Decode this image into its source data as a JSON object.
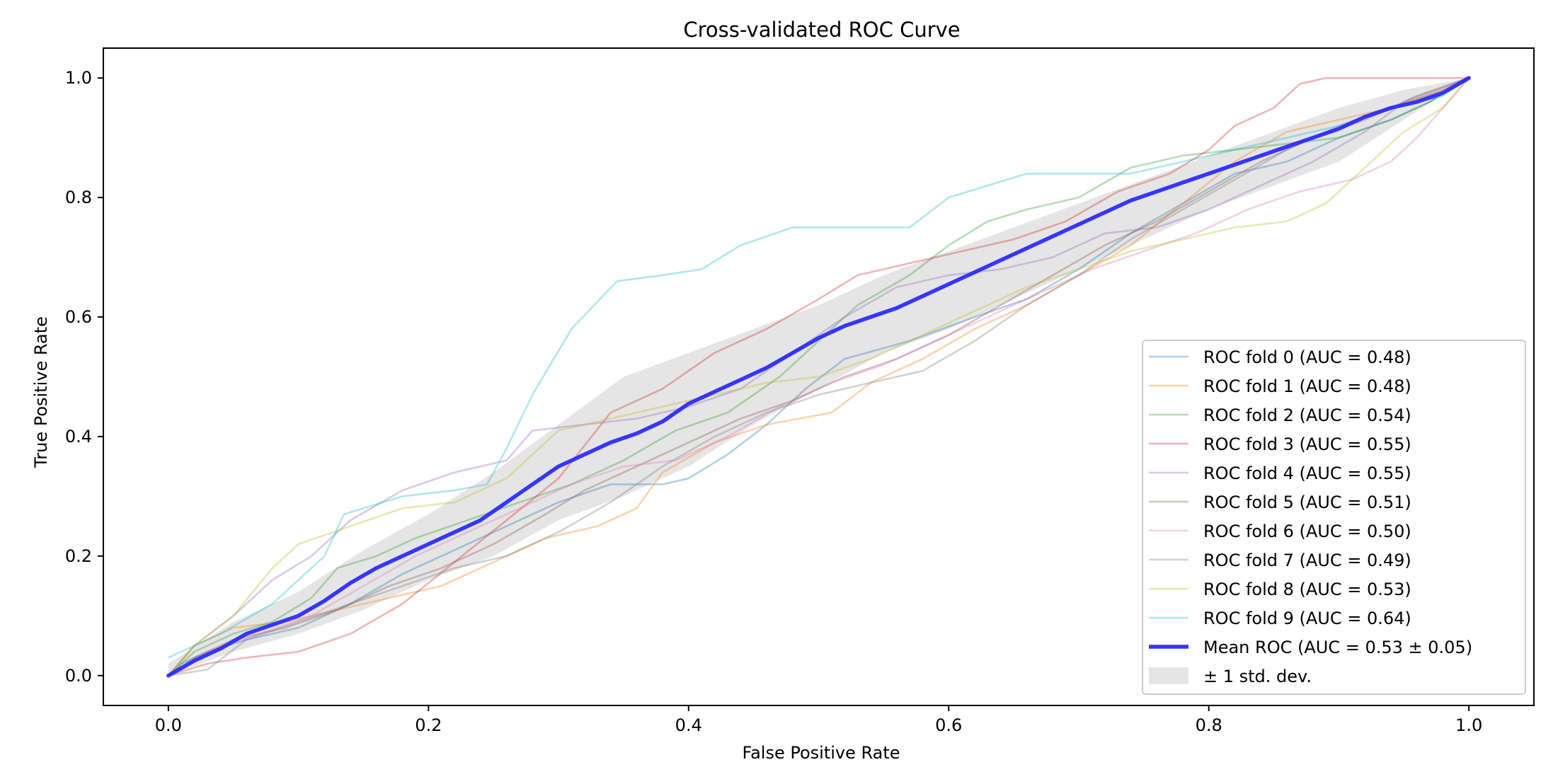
{
  "chart_data": {
    "type": "line",
    "title": "Cross-validated ROC Curve",
    "xlabel": "False Positive Rate",
    "ylabel": "True Positive Rate",
    "xlim": [
      -0.05,
      1.05
    ],
    "ylim": [
      -0.05,
      1.05
    ],
    "xticks": [
      "0.0",
      "0.2",
      "0.4",
      "0.6",
      "0.8",
      "1.0"
    ],
    "yticks": [
      "0.0",
      "0.2",
      "0.4",
      "0.6",
      "0.8",
      "1.0"
    ],
    "legend_position": "lower-right",
    "series": [
      {
        "name": "ROC fold 0 (AUC = 0.48)",
        "color": "#1f77b4",
        "x": [
          0,
          0.01,
          0.03,
          0.06,
          0.1,
          0.14,
          0.18,
          0.22,
          0.26,
          0.3,
          0.34,
          0.38,
          0.4,
          0.43,
          0.46,
          0.49,
          0.52,
          0.57,
          0.62,
          0.66,
          0.7,
          0.74,
          0.78,
          0.82,
          0.86,
          0.9,
          0.94,
          0.97,
          1.0
        ],
        "y": [
          0,
          0.02,
          0.04,
          0.06,
          0.08,
          0.12,
          0.17,
          0.21,
          0.25,
          0.29,
          0.32,
          0.32,
          0.33,
          0.37,
          0.42,
          0.48,
          0.53,
          0.56,
          0.6,
          0.63,
          0.68,
          0.74,
          0.79,
          0.84,
          0.86,
          0.9,
          0.93,
          0.96,
          1.0
        ]
      },
      {
        "name": "ROC fold 1 (AUC = 0.48)",
        "color": "#ff7f0e",
        "x": [
          0,
          0.02,
          0.05,
          0.09,
          0.13,
          0.17,
          0.21,
          0.25,
          0.29,
          0.33,
          0.36,
          0.38,
          0.42,
          0.46,
          0.51,
          0.54,
          0.58,
          0.62,
          0.66,
          0.7,
          0.74,
          0.78,
          0.82,
          0.86,
          0.9,
          0.94,
          0.98,
          1.0
        ],
        "y": [
          0,
          0.05,
          0.08,
          0.09,
          0.11,
          0.13,
          0.15,
          0.19,
          0.23,
          0.25,
          0.28,
          0.34,
          0.39,
          0.42,
          0.44,
          0.49,
          0.53,
          0.58,
          0.62,
          0.67,
          0.72,
          0.79,
          0.86,
          0.91,
          0.93,
          0.95,
          0.98,
          1.0
        ]
      },
      {
        "name": "ROC fold 2 (AUC = 0.54)",
        "color": "#2ca02c",
        "x": [
          0,
          0.02,
          0.05,
          0.08,
          0.11,
          0.13,
          0.16,
          0.19,
          0.23,
          0.27,
          0.31,
          0.35,
          0.39,
          0.43,
          0.47,
          0.5,
          0.53,
          0.57,
          0.6,
          0.63,
          0.66,
          0.7,
          0.74,
          0.78,
          0.82,
          0.86,
          0.9,
          0.94,
          0.97,
          1.0
        ],
        "y": [
          0,
          0.04,
          0.07,
          0.09,
          0.13,
          0.18,
          0.2,
          0.23,
          0.26,
          0.29,
          0.32,
          0.36,
          0.41,
          0.44,
          0.5,
          0.56,
          0.62,
          0.67,
          0.72,
          0.76,
          0.78,
          0.8,
          0.85,
          0.87,
          0.88,
          0.89,
          0.9,
          0.93,
          0.96,
          1.0
        ]
      },
      {
        "name": "ROC fold 3 (AUC = 0.55)",
        "color": "#d62728",
        "x": [
          0,
          0.03,
          0.06,
          0.1,
          0.14,
          0.18,
          0.22,
          0.26,
          0.3,
          0.34,
          0.38,
          0.42,
          0.46,
          0.5,
          0.53,
          0.57,
          0.61,
          0.65,
          0.69,
          0.73,
          0.77,
          0.8,
          0.82,
          0.85,
          0.87,
          0.89,
          0.92,
          0.96,
          1.0
        ],
        "y": [
          0,
          0.02,
          0.03,
          0.04,
          0.07,
          0.12,
          0.19,
          0.26,
          0.33,
          0.44,
          0.48,
          0.54,
          0.58,
          0.63,
          0.67,
          0.69,
          0.71,
          0.73,
          0.76,
          0.81,
          0.84,
          0.88,
          0.92,
          0.95,
          0.99,
          1.0,
          1.0,
          1.0,
          1.0
        ]
      },
      {
        "name": "ROC fold 4 (AUC = 0.55)",
        "color": "#9467bd",
        "x": [
          0,
          0.02,
          0.05,
          0.08,
          0.11,
          0.14,
          0.18,
          0.22,
          0.26,
          0.28,
          0.32,
          0.36,
          0.4,
          0.44,
          0.48,
          0.52,
          0.56,
          0.6,
          0.64,
          0.68,
          0.72,
          0.76,
          0.8,
          0.84,
          0.88,
          0.92,
          0.95,
          1.0
        ],
        "y": [
          0,
          0.05,
          0.1,
          0.16,
          0.2,
          0.26,
          0.31,
          0.34,
          0.36,
          0.41,
          0.42,
          0.43,
          0.45,
          0.48,
          0.54,
          0.6,
          0.65,
          0.67,
          0.68,
          0.7,
          0.74,
          0.75,
          0.78,
          0.82,
          0.86,
          0.91,
          0.96,
          1.0
        ]
      },
      {
        "name": "ROC fold 5 (AUC = 0.51)",
        "color": "#8c564b",
        "x": [
          0,
          0.02,
          0.05,
          0.09,
          0.13,
          0.17,
          0.21,
          0.25,
          0.29,
          0.32,
          0.36,
          0.4,
          0.44,
          0.48,
          0.52,
          0.56,
          0.6,
          0.64,
          0.68,
          0.72,
          0.76,
          0.8,
          0.84,
          0.88,
          0.92,
          0.96,
          1.0
        ],
        "y": [
          0,
          0.03,
          0.06,
          0.08,
          0.11,
          0.15,
          0.18,
          0.22,
          0.27,
          0.31,
          0.35,
          0.39,
          0.43,
          0.46,
          0.5,
          0.53,
          0.57,
          0.62,
          0.67,
          0.72,
          0.76,
          0.81,
          0.86,
          0.9,
          0.93,
          0.97,
          1.0
        ]
      },
      {
        "name": "ROC fold 6 (AUC = 0.50)",
        "color": "#e377c2",
        "x": [
          0,
          0.03,
          0.07,
          0.11,
          0.15,
          0.19,
          0.23,
          0.27,
          0.31,
          0.35,
          0.39,
          0.43,
          0.47,
          0.51,
          0.55,
          0.59,
          0.63,
          0.67,
          0.71,
          0.75,
          0.79,
          0.83,
          0.87,
          0.91,
          0.94,
          0.96,
          0.98,
          1.0
        ],
        "y": [
          0,
          0.04,
          0.07,
          0.1,
          0.15,
          0.2,
          0.24,
          0.28,
          0.32,
          0.35,
          0.36,
          0.4,
          0.45,
          0.49,
          0.52,
          0.56,
          0.6,
          0.64,
          0.68,
          0.71,
          0.74,
          0.78,
          0.81,
          0.83,
          0.86,
          0.9,
          0.95,
          1.0
        ]
      },
      {
        "name": "ROC fold 7 (AUC = 0.49)",
        "color": "#7f7f7f",
        "x": [
          0,
          0.03,
          0.06,
          0.1,
          0.14,
          0.18,
          0.22,
          0.26,
          0.3,
          0.34,
          0.38,
          0.42,
          0.46,
          0.5,
          0.54,
          0.58,
          0.62,
          0.66,
          0.7,
          0.74,
          0.78,
          0.82,
          0.86,
          0.9,
          0.94,
          0.98,
          1.0
        ],
        "y": [
          0,
          0.01,
          0.06,
          0.09,
          0.12,
          0.15,
          0.18,
          0.2,
          0.24,
          0.29,
          0.35,
          0.4,
          0.44,
          0.47,
          0.49,
          0.51,
          0.56,
          0.62,
          0.67,
          0.73,
          0.78,
          0.83,
          0.88,
          0.92,
          0.95,
          0.98,
          1.0
        ]
      },
      {
        "name": "ROC fold 8 (AUC = 0.53)",
        "color": "#bcbd22",
        "x": [
          0,
          0.02,
          0.05,
          0.08,
          0.1,
          0.14,
          0.18,
          0.22,
          0.26,
          0.3,
          0.34,
          0.38,
          0.42,
          0.46,
          0.5,
          0.54,
          0.58,
          0.62,
          0.66,
          0.7,
          0.74,
          0.78,
          0.82,
          0.86,
          0.89,
          0.92,
          0.95,
          0.98,
          1.0
        ],
        "y": [
          0,
          0.05,
          0.1,
          0.18,
          0.22,
          0.25,
          0.28,
          0.29,
          0.33,
          0.41,
          0.43,
          0.45,
          0.47,
          0.49,
          0.5,
          0.53,
          0.57,
          0.61,
          0.65,
          0.68,
          0.71,
          0.73,
          0.75,
          0.76,
          0.79,
          0.85,
          0.91,
          0.95,
          1.0
        ]
      },
      {
        "name": "ROC fold 9 (AUC = 0.64)",
        "color": "#17becf",
        "x": [
          0,
          0.04,
          0.08,
          0.12,
          0.135,
          0.18,
          0.22,
          0.245,
          0.26,
          0.28,
          0.31,
          0.345,
          0.38,
          0.41,
          0.44,
          0.48,
          0.52,
          0.57,
          0.6,
          0.63,
          0.66,
          0.7,
          0.74,
          0.78,
          0.82,
          0.86,
          0.9,
          0.94,
          0.98,
          1.0
        ],
        "y": [
          0.03,
          0.07,
          0.12,
          0.2,
          0.27,
          0.3,
          0.31,
          0.32,
          0.38,
          0.47,
          0.58,
          0.66,
          0.67,
          0.68,
          0.72,
          0.75,
          0.75,
          0.75,
          0.8,
          0.82,
          0.84,
          0.84,
          0.84,
          0.86,
          0.88,
          0.9,
          0.92,
          0.95,
          0.97,
          1.0
        ]
      }
    ],
    "mean": {
      "name": "Mean ROC (AUC = 0.53 ± 0.05)",
      "color": "#2b2bff",
      "x": [
        0,
        0.02,
        0.04,
        0.06,
        0.08,
        0.1,
        0.12,
        0.14,
        0.16,
        0.18,
        0.2,
        0.22,
        0.24,
        0.26,
        0.28,
        0.3,
        0.32,
        0.34,
        0.36,
        0.38,
        0.4,
        0.42,
        0.44,
        0.46,
        0.48,
        0.5,
        0.52,
        0.54,
        0.56,
        0.58,
        0.6,
        0.62,
        0.64,
        0.66,
        0.68,
        0.7,
        0.72,
        0.74,
        0.76,
        0.78,
        0.8,
        0.82,
        0.84,
        0.86,
        0.88,
        0.9,
        0.92,
        0.94,
        0.96,
        0.98,
        1.0
      ],
      "y": [
        0,
        0.025,
        0.045,
        0.07,
        0.085,
        0.1,
        0.125,
        0.155,
        0.18,
        0.2,
        0.22,
        0.24,
        0.26,
        0.29,
        0.32,
        0.35,
        0.37,
        0.39,
        0.405,
        0.425,
        0.455,
        0.475,
        0.495,
        0.515,
        0.54,
        0.565,
        0.585,
        0.6,
        0.615,
        0.635,
        0.655,
        0.675,
        0.695,
        0.715,
        0.735,
        0.755,
        0.775,
        0.795,
        0.81,
        0.825,
        0.84,
        0.855,
        0.87,
        0.885,
        0.9,
        0.915,
        0.935,
        0.95,
        0.96,
        0.975,
        1.0
      ]
    },
    "band": {
      "name": "± 1 std. dev.",
      "color": "#d0d0d0",
      "x": [
        0,
        0.05,
        0.1,
        0.15,
        0.2,
        0.25,
        0.3,
        0.35,
        0.4,
        0.45,
        0.5,
        0.55,
        0.6,
        0.65,
        0.7,
        0.75,
        0.8,
        0.85,
        0.9,
        0.95,
        1.0
      ],
      "upper": [
        0.02,
        0.09,
        0.14,
        0.21,
        0.27,
        0.34,
        0.42,
        0.5,
        0.54,
        0.58,
        0.62,
        0.67,
        0.71,
        0.75,
        0.79,
        0.83,
        0.87,
        0.91,
        0.95,
        0.98,
        1.0
      ],
      "lower": [
        0,
        0.04,
        0.07,
        0.11,
        0.16,
        0.2,
        0.26,
        0.3,
        0.35,
        0.42,
        0.48,
        0.54,
        0.58,
        0.63,
        0.68,
        0.73,
        0.78,
        0.82,
        0.86,
        0.93,
        1.0
      ]
    }
  }
}
